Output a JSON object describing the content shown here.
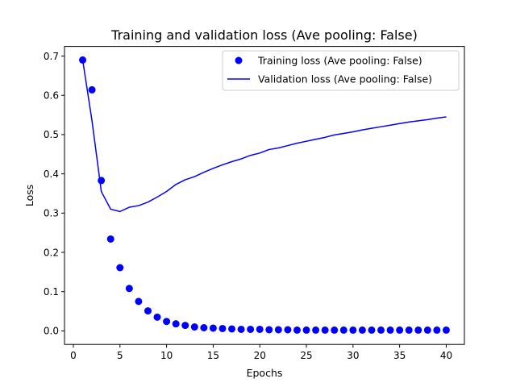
{
  "chart_data": {
    "type": "scatter",
    "title": "Training and validation loss (Ave pooling: False)",
    "xlabel": "Epochs",
    "ylabel": "Loss",
    "xlim": [
      -0.95,
      41.95
    ],
    "ylim": [
      -0.0345,
      0.7245
    ],
    "xticks": [
      0,
      5,
      10,
      15,
      20,
      25,
      30,
      35,
      40
    ],
    "yticks": [
      0.0,
      0.1,
      0.2,
      0.3,
      0.4,
      0.5,
      0.6,
      0.7
    ],
    "ytick_labels": [
      "0.0",
      "0.1",
      "0.2",
      "0.3",
      "0.4",
      "0.5",
      "0.6",
      "0.7"
    ],
    "grid": false,
    "legend_position": "top-right",
    "series": [
      {
        "name": "Training loss (Ave pooling: False)",
        "style": "markers",
        "color": "#0000ff",
        "x": [
          1,
          2,
          3,
          4,
          5,
          6,
          7,
          8,
          9,
          10,
          11,
          12,
          13,
          14,
          15,
          16,
          17,
          18,
          19,
          20,
          21,
          22,
          23,
          24,
          25,
          26,
          27,
          28,
          29,
          30,
          31,
          32,
          33,
          34,
          35,
          36,
          37,
          38,
          39,
          40
        ],
        "y": [
          0.69,
          0.614,
          0.383,
          0.234,
          0.161,
          0.108,
          0.075,
          0.051,
          0.035,
          0.024,
          0.018,
          0.014,
          0.01,
          0.008,
          0.007,
          0.006,
          0.005,
          0.004,
          0.004,
          0.004,
          0.003,
          0.003,
          0.003,
          0.002,
          0.002,
          0.002,
          0.002,
          0.002,
          0.002,
          0.002,
          0.002,
          0.002,
          0.002,
          0.002,
          0.002,
          0.002,
          0.002,
          0.002,
          0.002,
          0.002
        ]
      },
      {
        "name": "Validation loss (Ave pooling: False)",
        "style": "line",
        "color": "#0000ff",
        "x": [
          1,
          2,
          3,
          4,
          5,
          6,
          7,
          8,
          9,
          10,
          11,
          12,
          13,
          14,
          15,
          16,
          17,
          18,
          19,
          20,
          21,
          22,
          23,
          24,
          25,
          26,
          27,
          28,
          29,
          30,
          31,
          32,
          33,
          34,
          35,
          36,
          37,
          38,
          39,
          40
        ],
        "y": [
          0.69,
          0.535,
          0.355,
          0.31,
          0.304,
          0.315,
          0.319,
          0.328,
          0.341,
          0.355,
          0.373,
          0.385,
          0.393,
          0.404,
          0.414,
          0.423,
          0.431,
          0.438,
          0.447,
          0.453,
          0.462,
          0.466,
          0.472,
          0.478,
          0.483,
          0.488,
          0.493,
          0.499,
          0.503,
          0.507,
          0.512,
          0.516,
          0.52,
          0.524,
          0.528,
          0.532,
          0.535,
          0.538,
          0.542,
          0.545
        ]
      }
    ]
  }
}
